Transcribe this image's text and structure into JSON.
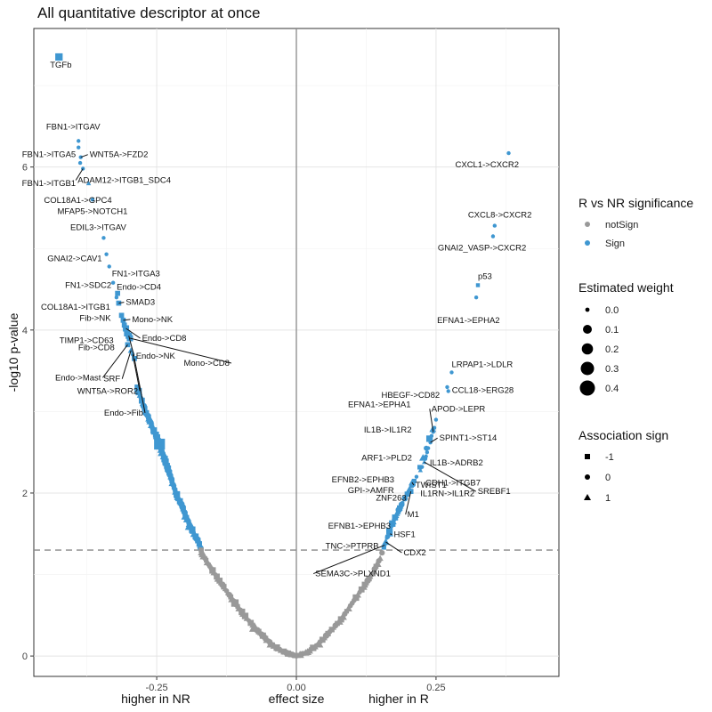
{
  "chart_data": {
    "type": "scatter",
    "title": "All quantitative descriptor at once",
    "xlabel": "effect size",
    "xlabel_left": "higher in NR",
    "xlabel_right": "higher in R",
    "ylabel": "-log10 p-value",
    "xlim": [
      -0.47,
      0.47
    ],
    "ylim": [
      -0.25,
      7.7
    ],
    "x_ticks": [
      -0.25,
      0,
      0.25
    ],
    "x_tick_labels": [
      "-0.25",
      "0.00",
      "0.25"
    ],
    "y_ticks": [
      0,
      2,
      4,
      6
    ],
    "y_tick_labels": [
      "0",
      "2",
      "4",
      "6"
    ],
    "threshold_y": 1.3,
    "colors": {
      "notSign": "#999999",
      "Sign": "#3f97d1"
    },
    "legend": {
      "significance": {
        "title": "R vs NR significance",
        "items": [
          "notSign",
          "Sign"
        ]
      },
      "weight": {
        "title": "Estimated weight",
        "items": [
          "0.0",
          "0.1",
          "0.2",
          "0.3",
          "0.4"
        ]
      },
      "sign": {
        "title": "Association sign",
        "items": [
          "-1",
          "0",
          "1"
        ]
      }
    },
    "labeled_points": [
      {
        "name": "TGFb",
        "x": -0.425,
        "y": 7.35,
        "w": 0.15,
        "sign": -1,
        "sig": "Sign"
      },
      {
        "name": "FBN1->ITGAV",
        "x": -0.39,
        "y": 6.32,
        "w": 0.0,
        "sign": 0,
        "sig": "Sign"
      },
      {
        "name": "FBN1->ITGA5",
        "x": -0.39,
        "y": 6.24,
        "w": 0.0,
        "sign": 0,
        "sig": "Sign"
      },
      {
        "name": "WNT5A->FZD2",
        "x": -0.386,
        "y": 6.12,
        "w": 0.0,
        "sign": 0,
        "sig": "Sign"
      },
      {
        "name": "FBN1->ITGB1",
        "x": -0.387,
        "y": 6.05,
        "w": 0.0,
        "sign": 0,
        "sig": "Sign"
      },
      {
        "name": "ADAM12->ITGB1_SDC4",
        "x": -0.382,
        "y": 5.98,
        "w": 0.0,
        "sign": 0,
        "sig": "Sign"
      },
      {
        "name": "COL18A1->GPC4",
        "x": -0.372,
        "y": 5.8,
        "w": 0.0,
        "sign": 1,
        "sig": "Sign"
      },
      {
        "name": "MFAP5->NOTCH1",
        "x": -0.365,
        "y": 5.6,
        "w": 0.0,
        "sign": 0,
        "sig": "Sign"
      },
      {
        "name": "EDIL3->ITGAV",
        "x": -0.345,
        "y": 5.13,
        "w": 0.0,
        "sign": 0,
        "sig": "Sign"
      },
      {
        "name": "GNAI2->CAV1",
        "x": -0.34,
        "y": 4.93,
        "w": 0.0,
        "sign": 0,
        "sig": "Sign"
      },
      {
        "name": "FN1->ITGA3",
        "x": -0.335,
        "y": 4.78,
        "w": 0.0,
        "sign": 0,
        "sig": "Sign"
      },
      {
        "name": "FN1->SDC2",
        "x": -0.328,
        "y": 4.58,
        "w": 0.0,
        "sign": 0,
        "sig": "Sign"
      },
      {
        "name": "Endo->CD4",
        "x": -0.32,
        "y": 4.45,
        "w": 0.05,
        "sign": -1,
        "sig": "Sign"
      },
      {
        "name": "COL18A1->ITGB1",
        "x": -0.322,
        "y": 4.4,
        "w": 0.0,
        "sign": 0,
        "sig": "Sign"
      },
      {
        "name": "SMAD3",
        "x": -0.318,
        "y": 4.33,
        "w": 0.05,
        "sign": -1,
        "sig": "Sign"
      },
      {
        "name": "Fib->NK",
        "x": -0.313,
        "y": 4.18,
        "w": 0.05,
        "sign": -1,
        "sig": "Sign"
      },
      {
        "name": "Mono->NK",
        "x": -0.31,
        "y": 4.12,
        "w": 0.05,
        "sign": -1,
        "sig": "Sign"
      },
      {
        "name": "TIMP1->CD63",
        "x": -0.308,
        "y": 4.06,
        "w": 0.05,
        "sign": -1,
        "sig": "Sign"
      },
      {
        "name": "Endo->CD8",
        "x": -0.305,
        "y": 4.02,
        "w": 0.1,
        "sign": -1,
        "sig": "Sign"
      },
      {
        "name": "Fib->CD8",
        "x": -0.303,
        "y": 3.96,
        "w": 0.1,
        "sign": -1,
        "sig": "Sign"
      },
      {
        "name": "Endo->NK",
        "x": -0.3,
        "y": 3.93,
        "w": 0.1,
        "sign": -1,
        "sig": "Sign"
      },
      {
        "name": "Mono->CD8",
        "x": -0.298,
        "y": 3.9,
        "w": 0.1,
        "sign": -1,
        "sig": "Sign"
      },
      {
        "name": "Endo->Mast",
        "x": -0.302,
        "y": 3.82,
        "w": 0.05,
        "sign": -1,
        "sig": "Sign"
      },
      {
        "name": "SRF",
        "x": -0.296,
        "y": 3.75,
        "w": 0.05,
        "sign": 1,
        "sig": "Sign"
      },
      {
        "name": "WNT5A->ROR2",
        "x": -0.293,
        "y": 3.7,
        "w": 0.0,
        "sign": 0,
        "sig": "Sign"
      },
      {
        "name": "Endo->Fib",
        "x": -0.29,
        "y": 3.65,
        "w": 0.05,
        "sign": -1,
        "sig": "Sign"
      },
      {
        "name": "CXCL1->CXCR2",
        "x": 0.38,
        "y": 6.17,
        "w": 0.0,
        "sign": 0,
        "sig": "Sign"
      },
      {
        "name": "CXCL8->CXCR2",
        "x": 0.355,
        "y": 5.28,
        "w": 0.0,
        "sign": 0,
        "sig": "Sign"
      },
      {
        "name": "GNAI2_VASP->CXCR2",
        "x": 0.352,
        "y": 5.15,
        "w": 0.0,
        "sign": 0,
        "sig": "Sign"
      },
      {
        "name": "p53",
        "x": 0.325,
        "y": 4.55,
        "w": 0.0,
        "sign": -1,
        "sig": "Sign"
      },
      {
        "name": "EFNA1->EPHA2",
        "x": 0.322,
        "y": 4.4,
        "w": 0.0,
        "sign": 0,
        "sig": "Sign"
      },
      {
        "name": "LRPAP1->LDLR",
        "x": 0.278,
        "y": 3.48,
        "w": 0.0,
        "sign": 0,
        "sig": "Sign"
      },
      {
        "name": "HBEGF->CD82",
        "x": 0.27,
        "y": 3.3,
        "w": 0.0,
        "sign": 0,
        "sig": "Sign"
      },
      {
        "name": "CCL18->ERG28",
        "x": 0.272,
        "y": 3.25,
        "w": 0.0,
        "sign": 0,
        "sig": "Sign"
      },
      {
        "name": "EFNA1->EPHA1",
        "x": 0.247,
        "y": 2.8,
        "w": 0.0,
        "sign": 0,
        "sig": "Sign"
      },
      {
        "name": "APOD->LEPR",
        "x": 0.245,
        "y": 2.75,
        "w": 0.0,
        "sign": 0,
        "sig": "Sign"
      },
      {
        "name": "IL1B->IL1R2",
        "x": 0.242,
        "y": 2.7,
        "w": 0.0,
        "sign": 0,
        "sig": "Sign"
      },
      {
        "name": "SPINT1->ST14",
        "x": 0.24,
        "y": 2.62,
        "w": 0.0,
        "sign": 0,
        "sig": "Sign"
      },
      {
        "name": "ARF1->PLD2",
        "x": 0.236,
        "y": 2.55,
        "w": 0.0,
        "sign": 0,
        "sig": "Sign"
      },
      {
        "name": "IL1B->ADRB2",
        "x": 0.234,
        "y": 2.5,
        "w": 0.0,
        "sign": 0,
        "sig": "Sign"
      },
      {
        "name": "EFNB2->EPHB3",
        "x": 0.232,
        "y": 2.45,
        "w": 0.0,
        "sign": 0,
        "sig": "Sign"
      },
      {
        "name": "CDH1->ITGB7",
        "x": 0.231,
        "y": 2.42,
        "w": 0.0,
        "sign": 0,
        "sig": "Sign"
      },
      {
        "name": "SREBF1",
        "x": 0.229,
        "y": 2.38,
        "w": 0.0,
        "sign": 1,
        "sig": "Sign"
      },
      {
        "name": "ZNF263",
        "x": 0.222,
        "y": 2.28,
        "w": 0.0,
        "sign": 1,
        "sig": "Sign"
      },
      {
        "name": "IL1RN->IL1R2",
        "x": 0.225,
        "y": 2.32,
        "w": 0.0,
        "sign": 0,
        "sig": "Sign"
      },
      {
        "name": "GPI->AMFR",
        "x": 0.21,
        "y": 2.1,
        "w": 0.0,
        "sign": 0,
        "sig": "Sign"
      },
      {
        "name": "TWIST1",
        "x": 0.207,
        "y": 2.13,
        "w": 0.05,
        "sign": 1,
        "sig": "Sign"
      },
      {
        "name": "M1",
        "x": 0.205,
        "y": 2.02,
        "w": 0.05,
        "sign": -1,
        "sig": "Sign"
      },
      {
        "name": "EFNB1->EPHB3",
        "x": 0.165,
        "y": 1.52,
        "w": 0.0,
        "sign": 0,
        "sig": "Sign"
      },
      {
        "name": "HSF1",
        "x": 0.168,
        "y": 1.5,
        "w": 0.05,
        "sign": 1,
        "sig": "Sign"
      },
      {
        "name": "TNC->PTPRB",
        "x": 0.162,
        "y": 1.45,
        "w": 0.0,
        "sign": 0,
        "sig": "Sign"
      },
      {
        "name": "CDX2",
        "x": 0.16,
        "y": 1.4,
        "w": 0.05,
        "sign": 1,
        "sig": "Sign"
      },
      {
        "name": "SEMA3C->PLXND1",
        "x": 0.158,
        "y": 1.36,
        "w": 0.0,
        "sign": 0,
        "sig": "Sign"
      }
    ],
    "cloud_points": [
      {
        "x": -0.285,
        "y": 3.3,
        "w": 0.05,
        "sign": -1,
        "sig": "Sign"
      },
      {
        "x": -0.28,
        "y": 3.2,
        "w": 0.05,
        "sign": 1,
        "sig": "Sign"
      },
      {
        "x": -0.27,
        "y": 3.0,
        "w": 0.1,
        "sign": 1,
        "sig": "Sign"
      },
      {
        "x": -0.262,
        "y": 2.9,
        "w": 0.1,
        "sign": 1,
        "sig": "Sign"
      },
      {
        "x": -0.258,
        "y": 2.8,
        "w": 0.05,
        "sign": 0,
        "sig": "Sign"
      },
      {
        "x": -0.25,
        "y": 2.7,
        "w": 0.1,
        "sign": 1,
        "sig": "Sign"
      },
      {
        "x": -0.245,
        "y": 2.6,
        "w": 0.3,
        "sign": -1,
        "sig": "Sign"
      },
      {
        "x": -0.24,
        "y": 2.5,
        "w": 0.15,
        "sign": 1,
        "sig": "Sign"
      },
      {
        "x": -0.235,
        "y": 2.4,
        "w": 0.05,
        "sign": 0,
        "sig": "Sign"
      },
      {
        "x": -0.23,
        "y": 2.3,
        "w": 0.1,
        "sign": -1,
        "sig": "Sign"
      },
      {
        "x": -0.225,
        "y": 2.2,
        "w": 0.05,
        "sign": 1,
        "sig": "Sign"
      },
      {
        "x": -0.218,
        "y": 2.05,
        "w": 0.05,
        "sign": 0,
        "sig": "Sign"
      },
      {
        "x": -0.212,
        "y": 1.95,
        "w": 0.1,
        "sign": 1,
        "sig": "Sign"
      },
      {
        "x": -0.205,
        "y": 1.85,
        "w": 0.05,
        "sign": -1,
        "sig": "Sign"
      },
      {
        "x": -0.198,
        "y": 1.72,
        "w": 0.15,
        "sign": 1,
        "sig": "Sign"
      },
      {
        "x": -0.19,
        "y": 1.6,
        "w": 0.2,
        "sign": 1,
        "sig": "Sign"
      },
      {
        "x": -0.183,
        "y": 1.5,
        "w": 0.1,
        "sign": 1,
        "sig": "Sign"
      },
      {
        "x": -0.175,
        "y": 1.4,
        "w": 0.05,
        "sign": 0,
        "sig": "Sign"
      },
      {
        "x": -0.168,
        "y": 1.25,
        "w": 0.1,
        "sign": 1,
        "sig": "notSign"
      },
      {
        "x": -0.155,
        "y": 1.1,
        "w": 0.05,
        "sign": 0,
        "sig": "notSign"
      },
      {
        "x": -0.14,
        "y": 0.95,
        "w": 0.1,
        "sign": 1,
        "sig": "notSign"
      },
      {
        "x": -0.125,
        "y": 0.8,
        "w": 0.05,
        "sign": 0,
        "sig": "notSign"
      },
      {
        "x": -0.11,
        "y": 0.65,
        "w": 0.15,
        "sign": -1,
        "sig": "notSign"
      },
      {
        "x": -0.095,
        "y": 0.52,
        "w": 0.1,
        "sign": 1,
        "sig": "notSign"
      },
      {
        "x": -0.075,
        "y": 0.35,
        "w": 0.2,
        "sign": 1,
        "sig": "notSign"
      },
      {
        "x": -0.06,
        "y": 0.25,
        "w": 0.1,
        "sign": -1,
        "sig": "notSign"
      },
      {
        "x": -0.045,
        "y": 0.15,
        "w": 0.15,
        "sign": 1,
        "sig": "notSign"
      },
      {
        "x": -0.03,
        "y": 0.08,
        "w": 0.05,
        "sign": 0,
        "sig": "notSign"
      },
      {
        "x": -0.015,
        "y": 0.03,
        "w": 0.1,
        "sign": -1,
        "sig": "notSign"
      },
      {
        "x": 0.0,
        "y": 0.0,
        "w": 0.05,
        "sign": 0,
        "sig": "notSign"
      },
      {
        "x": 0.02,
        "y": 0.05,
        "w": 0.1,
        "sign": 1,
        "sig": "notSign"
      },
      {
        "x": 0.04,
        "y": 0.15,
        "w": 0.15,
        "sign": 1,
        "sig": "notSign"
      },
      {
        "x": 0.06,
        "y": 0.3,
        "w": 0.05,
        "sign": 0,
        "sig": "notSign"
      },
      {
        "x": 0.08,
        "y": 0.45,
        "w": 0.1,
        "sign": -1,
        "sig": "notSign"
      },
      {
        "x": 0.1,
        "y": 0.65,
        "w": 0.05,
        "sign": 0,
        "sig": "notSign"
      },
      {
        "x": 0.12,
        "y": 0.85,
        "w": 0.1,
        "sign": 1,
        "sig": "notSign"
      },
      {
        "x": 0.135,
        "y": 1.0,
        "w": 0.05,
        "sign": 0,
        "sig": "notSign"
      },
      {
        "x": 0.15,
        "y": 1.2,
        "w": 0.05,
        "sign": 1,
        "sig": "notSign"
      },
      {
        "x": 0.17,
        "y": 1.6,
        "w": 0.05,
        "sign": 0,
        "sig": "Sign"
      },
      {
        "x": 0.18,
        "y": 1.75,
        "w": 0.05,
        "sign": 1,
        "sig": "Sign"
      },
      {
        "x": 0.19,
        "y": 1.88,
        "w": 0.0,
        "sign": 0,
        "sig": "Sign"
      },
      {
        "x": 0.215,
        "y": 2.2,
        "w": 0.0,
        "sign": 0,
        "sig": "Sign"
      },
      {
        "x": 0.25,
        "y": 2.9,
        "w": 0.0,
        "sign": 0,
        "sig": "Sign"
      }
    ]
  }
}
